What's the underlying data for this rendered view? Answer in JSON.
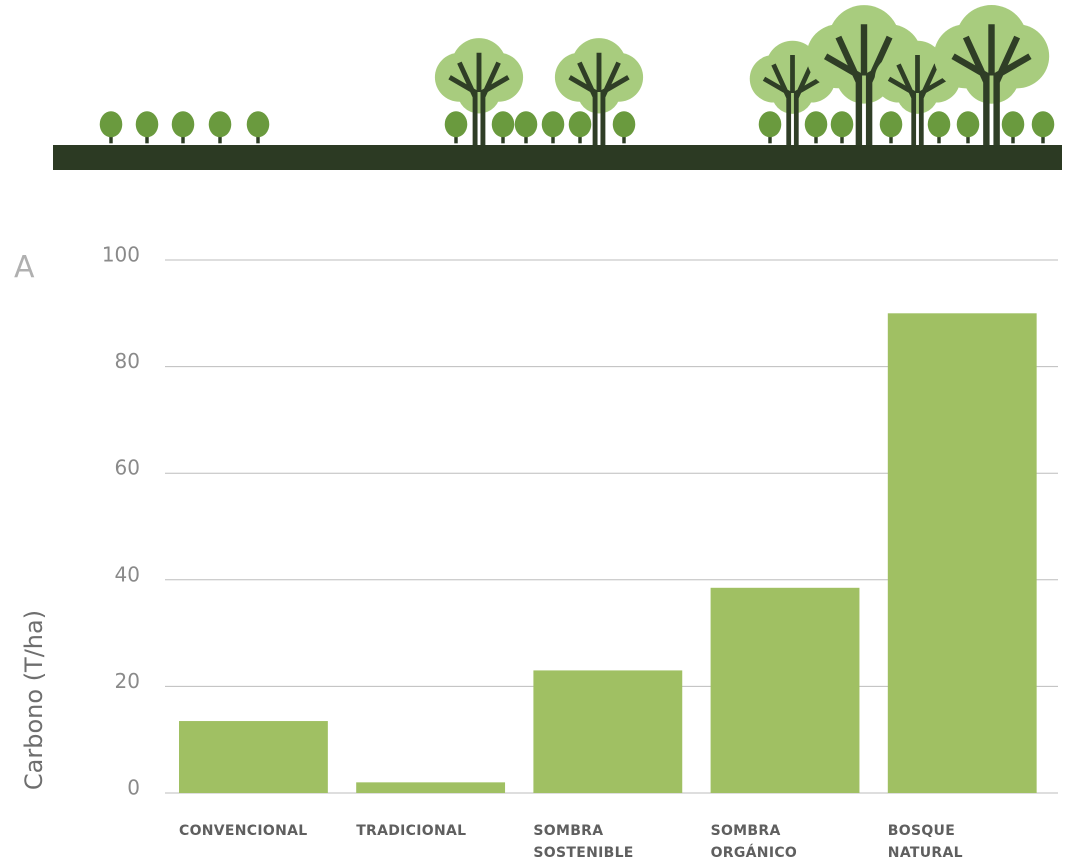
{
  "chart_data": {
    "type": "bar",
    "panel_label": "A",
    "ylabel": "Carbono (T/ha)",
    "categories": [
      "CONVENCIONAL",
      "TRADICIONAL",
      "SOMBRA SOSTENIBLE",
      "SOMBRA ORGÁNICO",
      "BOSQUE NATURAL"
    ],
    "values": [
      13.5,
      2,
      23,
      38.5,
      90
    ],
    "color": "#a0c063",
    "ylim": [
      0,
      100
    ],
    "yticks": [
      0,
      20,
      40,
      60,
      80,
      100
    ],
    "grid": true
  }
}
